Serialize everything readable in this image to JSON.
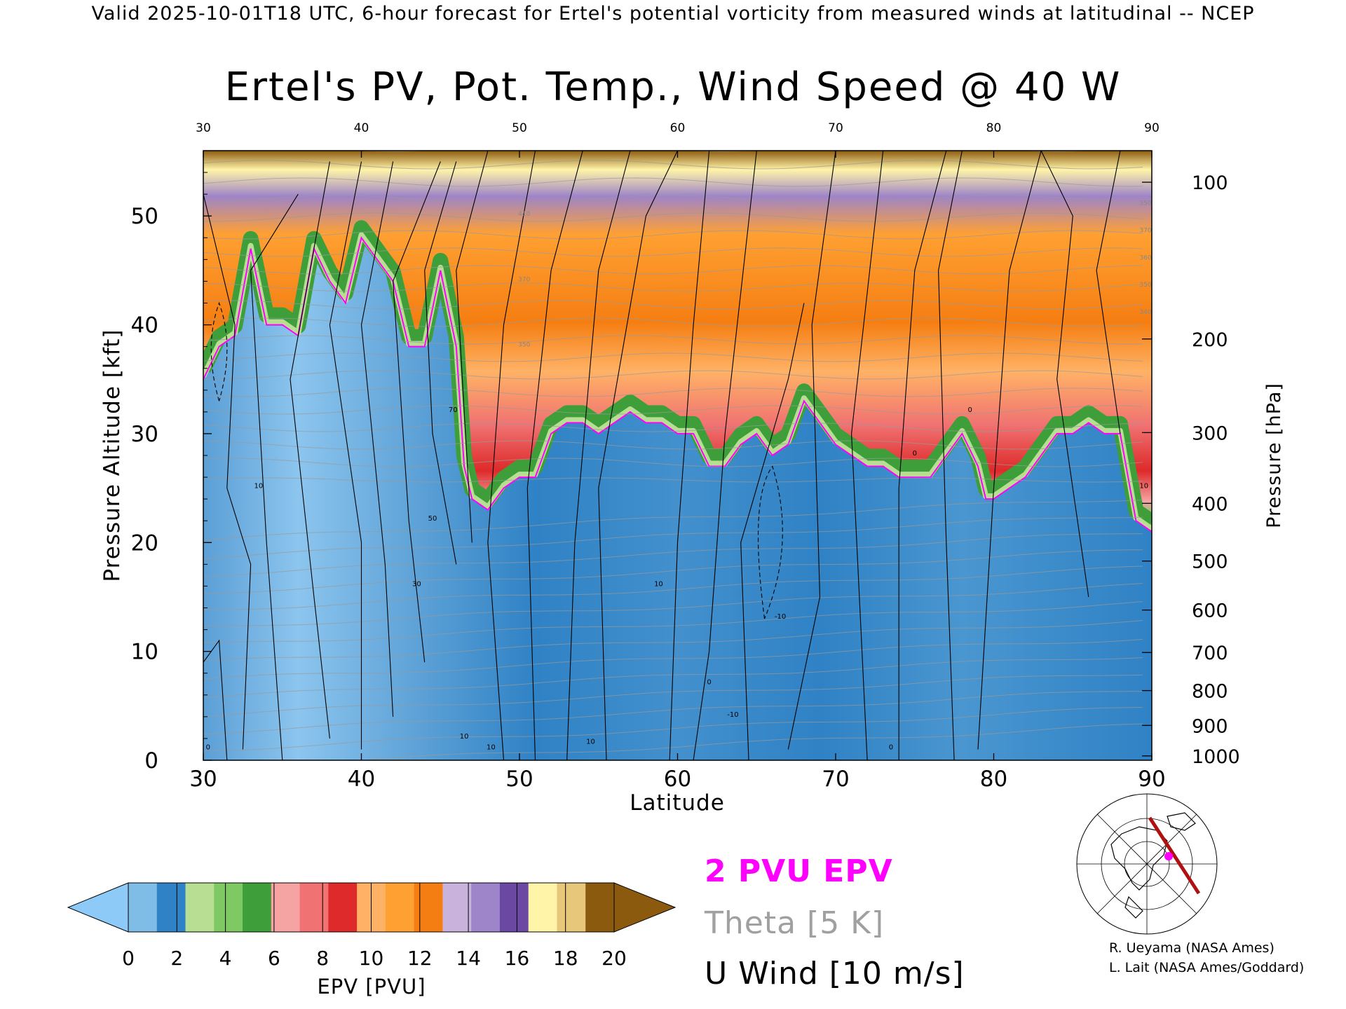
{
  "header": "Valid 2025-10-01T18 UTC, 6-hour forecast for Ertel's potential vorticity from measured winds at latitudinal -- NCEP",
  "chart_data": {
    "type": "heatmap",
    "title": "Ertel's PV, Pot. Temp., Wind Speed @ 40 W",
    "xlabel": "Latitude",
    "ylabel": "Pressure Altitude [kft]",
    "y2label": "Pressure [hPa]",
    "xlim": [
      30,
      90
    ],
    "ylim": [
      0,
      56
    ],
    "x_ticks": [
      30,
      40,
      50,
      60,
      70,
      80,
      90
    ],
    "y_ticks": [
      0,
      10,
      20,
      30,
      40,
      50
    ],
    "pressure_ticks": [
      {
        "label": "100",
        "kft": 53.1
      },
      {
        "label": "200",
        "kft": 38.7
      },
      {
        "label": "300",
        "kft": 30.1
      },
      {
        "label": "400",
        "kft": 23.6
      },
      {
        "label": "500",
        "kft": 18.3
      },
      {
        "label": "600",
        "kft": 13.8
      },
      {
        "label": "700",
        "kft": 9.9
      },
      {
        "label": "800",
        "kft": 6.4
      },
      {
        "label": "900",
        "kft": 3.2
      },
      {
        "label": "1000",
        "kft": 0.4
      }
    ],
    "colorbar": {
      "label": "EPV [PVU]",
      "ticks": [
        0,
        2,
        4,
        6,
        8,
        10,
        12,
        14,
        16,
        18,
        20
      ],
      "colors": [
        "#7fbde6",
        "#2f82c5",
        "#b7de93",
        "#7fc964",
        "#3d9e3a",
        "#f5a3a3",
        "#f07272",
        "#de2a2a",
        "#ffb266",
        "#ffa032",
        "#f57e12",
        "#c9b3dd",
        "#9e84c8",
        "#6b49a3",
        "#fff4a8",
        "#e7c87b",
        "#8c5a0e"
      ],
      "under_color": "#8dcaf7",
      "over_color": "#8c5a0e"
    },
    "tropopause_2pvu": [
      {
        "lat": 30,
        "kft": 35
      },
      {
        "lat": 31,
        "kft": 38
      },
      {
        "lat": 32,
        "kft": 39
      },
      {
        "lat": 33,
        "kft": 47
      },
      {
        "lat": 34,
        "kft": 40
      },
      {
        "lat": 35,
        "kft": 40
      },
      {
        "lat": 36,
        "kft": 39
      },
      {
        "lat": 37,
        "kft": 47
      },
      {
        "lat": 38,
        "kft": 44
      },
      {
        "lat": 39,
        "kft": 42
      },
      {
        "lat": 40,
        "kft": 48
      },
      {
        "lat": 41,
        "kft": 46
      },
      {
        "lat": 42,
        "kft": 44
      },
      {
        "lat": 43,
        "kft": 38
      },
      {
        "lat": 44,
        "kft": 38
      },
      {
        "lat": 45,
        "kft": 45
      },
      {
        "lat": 46,
        "kft": 38
      },
      {
        "lat": 46.5,
        "kft": 27
      },
      {
        "lat": 47,
        "kft": 24
      },
      {
        "lat": 48,
        "kft": 23
      },
      {
        "lat": 49,
        "kft": 25
      },
      {
        "lat": 50,
        "kft": 26
      },
      {
        "lat": 51,
        "kft": 26
      },
      {
        "lat": 52,
        "kft": 30
      },
      {
        "lat": 53,
        "kft": 31
      },
      {
        "lat": 54,
        "kft": 31
      },
      {
        "lat": 55,
        "kft": 30
      },
      {
        "lat": 56,
        "kft": 31
      },
      {
        "lat": 57,
        "kft": 32
      },
      {
        "lat": 58,
        "kft": 31
      },
      {
        "lat": 59,
        "kft": 31
      },
      {
        "lat": 60,
        "kft": 30
      },
      {
        "lat": 61,
        "kft": 30
      },
      {
        "lat": 62,
        "kft": 27
      },
      {
        "lat": 63,
        "kft": 27
      },
      {
        "lat": 64,
        "kft": 29
      },
      {
        "lat": 65,
        "kft": 30
      },
      {
        "lat": 66,
        "kft": 28
      },
      {
        "lat": 67,
        "kft": 29
      },
      {
        "lat": 68,
        "kft": 33
      },
      {
        "lat": 69,
        "kft": 31
      },
      {
        "lat": 70,
        "kft": 29
      },
      {
        "lat": 71,
        "kft": 28
      },
      {
        "lat": 72,
        "kft": 27
      },
      {
        "lat": 73,
        "kft": 27
      },
      {
        "lat": 74,
        "kft": 26
      },
      {
        "lat": 75,
        "kft": 26
      },
      {
        "lat": 76,
        "kft": 26
      },
      {
        "lat": 77,
        "kft": 28
      },
      {
        "lat": 78,
        "kft": 30
      },
      {
        "lat": 79,
        "kft": 27
      },
      {
        "lat": 79.5,
        "kft": 24
      },
      {
        "lat": 80,
        "kft": 24
      },
      {
        "lat": 81,
        "kft": 25
      },
      {
        "lat": 82,
        "kft": 26
      },
      {
        "lat": 83,
        "kft": 28
      },
      {
        "lat": 84,
        "kft": 30
      },
      {
        "lat": 85,
        "kft": 30
      },
      {
        "lat": 86,
        "kft": 31
      },
      {
        "lat": 87,
        "kft": 30
      },
      {
        "lat": 88,
        "kft": 30
      },
      {
        "lat": 89,
        "kft": 22
      },
      {
        "lat": 90,
        "kft": 21
      }
    ],
    "wind_isotach_labels": [
      {
        "text": "0",
        "lat": 30.3,
        "kft": 1
      },
      {
        "text": "10",
        "lat": 33.5,
        "kft": 25
      },
      {
        "text": "30",
        "lat": 43.5,
        "kft": 16
      },
      {
        "text": "50",
        "lat": 44.5,
        "kft": 22
      },
      {
        "text": "70",
        "lat": 45.8,
        "kft": 32
      },
      {
        "text": "10",
        "lat": 46.5,
        "kft": 2
      },
      {
        "text": "10",
        "lat": 48.2,
        "kft": 1
      },
      {
        "text": "10",
        "lat": 54.5,
        "kft": 1.5
      },
      {
        "text": "10",
        "lat": 58.8,
        "kft": 16
      },
      {
        "text": "0",
        "lat": 62,
        "kft": 7
      },
      {
        "text": "-10",
        "lat": 63.5,
        "kft": 4
      },
      {
        "text": "-10",
        "lat": 66.5,
        "kft": 13
      },
      {
        "text": "0",
        "lat": 73.5,
        "kft": 1
      },
      {
        "text": "0",
        "lat": 75,
        "kft": 28
      },
      {
        "text": "0",
        "lat": 78.5,
        "kft": 32
      },
      {
        "text": "10",
        "lat": 89.5,
        "kft": 25
      }
    ],
    "theta_labels": [
      "410",
      "370",
      "350",
      "350",
      "370",
      "360",
      "350",
      "340"
    ]
  },
  "legend": {
    "pvu": "2 PVU EPV",
    "theta": "Theta [5 K]",
    "uwind": "U Wind [10 m/s]",
    "pvu_color": "#ff00ff",
    "theta_color": "#a0a0a0"
  },
  "credits": [
    "R. Ueyama (NASA Ames)",
    "L. Lait (NASA Ames/Goddard)"
  ]
}
